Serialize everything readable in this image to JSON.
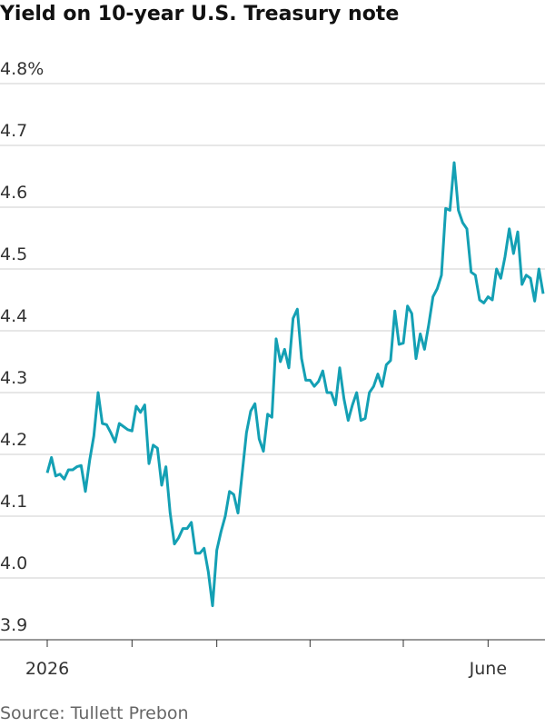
{
  "chart_data": {
    "type": "line",
    "title": "Yield on 10-year U.S. Treasury note",
    "source": "Source: Tullett Prebon",
    "color": "#14a0b4",
    "grid": true,
    "ylim": [
      3.9,
      4.8
    ],
    "yticks": [
      3.9,
      {
        "value": 4,
        "label": "4.0"
      },
      4.1,
      4.2,
      4.3,
      4.4,
      4.5,
      4.6,
      4.7,
      {
        "value": 4.8,
        "label": "4.8%"
      }
    ],
    "xticks": [
      0,
      20,
      40,
      62,
      84,
      104
    ],
    "categories": [
      "2026",
      null,
      null,
      null,
      null,
      null,
      null,
      null,
      null,
      null,
      null,
      null,
      null,
      null,
      null,
      null,
      null,
      null,
      null,
      null,
      null,
      null,
      null,
      null,
      null,
      null,
      null,
      null,
      null,
      null,
      null,
      null,
      null,
      null,
      null,
      null,
      null,
      null,
      null,
      null,
      null,
      null,
      null,
      null,
      null,
      null,
      null,
      null,
      null,
      null,
      null,
      null,
      null,
      null,
      null,
      null,
      null,
      null,
      null,
      null,
      null,
      null,
      null,
      null,
      null,
      null,
      null,
      null,
      null,
      null,
      null,
      null,
      null,
      null,
      null,
      null,
      null,
      null,
      null,
      null,
      null,
      null,
      null,
      null,
      null,
      null,
      null,
      null,
      null,
      null,
      null,
      null,
      null,
      null,
      null,
      null,
      null,
      null,
      null,
      null,
      null,
      null,
      null,
      null,
      "June",
      null,
      null,
      null,
      null,
      null,
      null,
      null,
      null,
      null,
      null,
      null,
      null,
      null
    ],
    "values": [
      4.17,
      4.195,
      4.165,
      4.168,
      4.16,
      4.175,
      4.175,
      4.18,
      4.182,
      4.14,
      4.19,
      4.23,
      4.3,
      4.25,
      4.248,
      4.235,
      4.22,
      4.25,
      4.245,
      4.24,
      4.238,
      4.278,
      4.268,
      4.28,
      4.185,
      4.215,
      4.21,
      4.15,
      4.18,
      4.105,
      4.055,
      4.065,
      4.08,
      4.08,
      4.09,
      4.04,
      4.04,
      4.048,
      4.01,
      3.955,
      4.045,
      4.075,
      4.1,
      4.14,
      4.135,
      4.105,
      4.17,
      4.235,
      4.27,
      4.282,
      4.225,
      4.205,
      4.265,
      4.26,
      4.387,
      4.35,
      4.37,
      4.34,
      4.42,
      4.435,
      4.355,
      4.32,
      4.32,
      4.31,
      4.318,
      4.335,
      4.3,
      4.3,
      4.28,
      4.34,
      4.29,
      4.255,
      4.28,
      4.3,
      4.255,
      4.258,
      4.3,
      4.31,
      4.33,
      4.31,
      4.345,
      4.352,
      4.432,
      4.378,
      4.38,
      4.44,
      4.428,
      4.355,
      4.395,
      4.37,
      4.41,
      4.455,
      4.468,
      4.49,
      4.598,
      4.595,
      4.672,
      4.595,
      4.575,
      4.565,
      4.495,
      4.49,
      4.45,
      4.445,
      4.455,
      4.45,
      4.5,
      4.485,
      4.52,
      4.565,
      4.525,
      4.56,
      4.475,
      4.49,
      4.485,
      4.448,
      4.5,
      4.46
    ]
  }
}
